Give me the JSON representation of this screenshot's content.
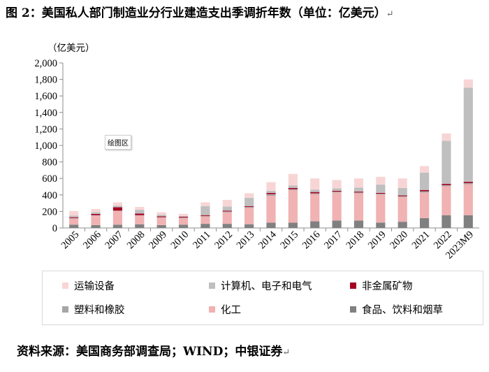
{
  "figure": {
    "title": "图 2：美国私人部门制造业分行业建造支出季调折年数（单位：亿美元）",
    "paragraph_mark": "↵"
  },
  "plot_area_tag": "绘图区",
  "source": "资料来源：美国商务部调查局；WIND；中银证券",
  "legend": {
    "items": [
      {
        "name": "运输设备",
        "color": "#f8d5d5"
      },
      {
        "name": "计算机、电子和电气",
        "color": "#bfbfbf"
      },
      {
        "name": "非金属矿物",
        "color": "#a50021"
      },
      {
        "name": "塑料和橡胶",
        "color": "#a6a6a6"
      },
      {
        "name": "化工",
        "color": "#f0b2b2"
      },
      {
        "name": "食品、饮料和烟草",
        "color": "#808080"
      }
    ]
  },
  "chart_data": {
    "type": "bar",
    "stacked": true,
    "unit_label": "（亿美元）",
    "ylim": [
      0,
      2000
    ],
    "yticks": [
      0,
      200,
      400,
      600,
      800,
      1000,
      1200,
      1400,
      1600,
      1800,
      2000
    ],
    "ytick_labels": [
      "0",
      "200",
      "400",
      "600",
      "800",
      "1,000",
      "1,200",
      "1,400",
      "1,600",
      "1,800",
      "2,000"
    ],
    "categories": [
      "2005",
      "2006",
      "2007",
      "2008",
      "2009",
      "2010",
      "2011",
      "2012",
      "2013",
      "2014",
      "2015",
      "2016",
      "2017",
      "2018",
      "2019",
      "2020",
      "2021",
      "2022",
      "2023M9"
    ],
    "grid": false,
    "series": [
      {
        "name": "食品、饮料和烟草",
        "color": "#808080",
        "values": [
          40,
          35,
          40,
          45,
          35,
          40,
          50,
          50,
          45,
          65,
          65,
          80,
          90,
          90,
          65,
          75,
          120,
          155,
          155
        ]
      },
      {
        "name": "化工",
        "color": "#f0b2b2",
        "values": [
          75,
          115,
          165,
          105,
          90,
          80,
          90,
          140,
          200,
          325,
          395,
          330,
          340,
          330,
          340,
          300,
          310,
          350,
          375
        ]
      },
      {
        "name": "塑料和橡胶",
        "color": "#a6a6a6",
        "values": [
          5,
          5,
          5,
          5,
          5,
          5,
          5,
          10,
          10,
          20,
          10,
          10,
          10,
          10,
          10,
          10,
          15,
          15,
          15
        ]
      },
      {
        "name": "非金属矿物",
        "color": "#a50021",
        "values": [
          10,
          15,
          40,
          20,
          10,
          10,
          10,
          10,
          10,
          15,
          15,
          15,
          10,
          10,
          10,
          10,
          15,
          15,
          15
        ]
      },
      {
        "name": "计算机、电子和电气",
        "color": "#bfbfbf",
        "values": [
          20,
          20,
          20,
          45,
          20,
          10,
          110,
          50,
          100,
          25,
          30,
          30,
          30,
          50,
          100,
          90,
          210,
          520,
          1140
        ]
      },
      {
        "name": "运输设备",
        "color": "#f8d5d5",
        "values": [
          55,
          40,
          40,
          35,
          30,
          25,
          45,
          80,
          55,
          105,
          140,
          135,
          100,
          110,
          95,
          115,
          80,
          90,
          100
        ]
      }
    ]
  }
}
